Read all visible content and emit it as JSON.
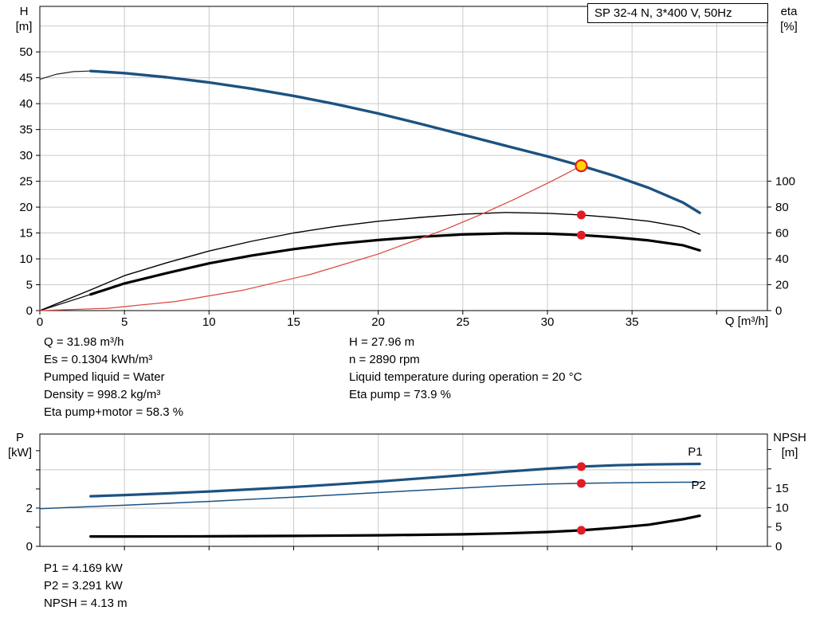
{
  "title_box": {
    "label": "SP 32-4 N, 3*400 V, 50Hz"
  },
  "axes_titles": {
    "head": [
      "H",
      "[m]"
    ],
    "eta": [
      "eta",
      "[%]"
    ],
    "flow": "Q [m³/h]",
    "power": [
      "P",
      "[kW]"
    ],
    "npsh": [
      "NPSH",
      "[m]"
    ]
  },
  "info_top": {
    "left": [
      "Q = 31.98 m³/h",
      "Es = 0.1304 kWh/m³",
      "Pumped liquid = Water",
      "Density = 998.2 kg/m³",
      "Eta pump+motor = 58.3 %"
    ],
    "right": [
      "H = 27.96 m",
      "n = 2890 rpm",
      "Liquid temperature during operation = 20 °C",
      "Eta pump = 73.9 %"
    ]
  },
  "info_bottom": [
    "P1 = 4.169 kW",
    "P2 = 3.291 kW",
    "NPSH = 4.13 m"
  ],
  "colors": {
    "grid": "#c9c9c9",
    "axis": "#000000",
    "curve_blue": "#1c5280",
    "label_blue": "#2e74b5",
    "system_red": "#d9453c",
    "dot_red": "#e31b23",
    "duty_yellow": "#ffd500",
    "curve_black": "#000000"
  },
  "chart_data": [
    {
      "type": "line",
      "title": "SP 32-4 N, 3*400 V, 50Hz",
      "area": {
        "l": 50,
        "r": 963,
        "t": 8,
        "b": 390
      },
      "x": {
        "label": "Q [m³/h]",
        "min": 0,
        "max": 43,
        "grid": [
          5,
          10,
          15,
          20,
          25,
          30,
          35,
          40
        ],
        "ticks": [
          {
            "v": 0,
            "l": "0"
          },
          {
            "v": 5,
            "l": "5"
          },
          {
            "v": 10,
            "l": "10"
          },
          {
            "v": 15,
            "l": "15"
          },
          {
            "v": 20,
            "l": "20"
          },
          {
            "v": 25,
            "l": "25"
          },
          {
            "v": 30,
            "l": "30"
          },
          {
            "v": 35,
            "l": "35"
          },
          {
            "v": 40,
            "l": ""
          }
        ]
      },
      "y_left": {
        "label": "H [m]",
        "min": 0,
        "max": 58.8,
        "grid": [
          5,
          10,
          15,
          20,
          25,
          30,
          35,
          40,
          45,
          50,
          55
        ],
        "ticks": [
          {
            "v": 0,
            "l": "0"
          },
          {
            "v": 5,
            "l": "5"
          },
          {
            "v": 10,
            "l": "10"
          },
          {
            "v": 15,
            "l": "15"
          },
          {
            "v": 20,
            "l": "20"
          },
          {
            "v": 25,
            "l": "25"
          },
          {
            "v": 30,
            "l": "30"
          },
          {
            "v": 35,
            "l": "35"
          },
          {
            "v": 40,
            "l": "40"
          },
          {
            "v": 45,
            "l": "45"
          },
          {
            "v": 50,
            "l": "50"
          }
        ]
      },
      "y_right": {
        "label": "eta [%]",
        "min": 0,
        "max": 235,
        "ticks": [
          {
            "v": 0,
            "l": "0"
          },
          {
            "v": 20,
            "l": "20"
          },
          {
            "v": 40,
            "l": "40"
          },
          {
            "v": 60,
            "l": "60"
          },
          {
            "v": 80,
            "l": "80"
          },
          {
            "v": 100,
            "l": "100"
          }
        ]
      },
      "series": [
        {
          "name": "head-curve-extension",
          "axis": "left",
          "color": "#222222",
          "width": 1.2,
          "x": [
            0,
            1,
            2,
            3
          ],
          "y": [
            44.7,
            45.7,
            46.2,
            46.3
          ]
        },
        {
          "name": "head-curve",
          "axis": "left",
          "color": "#1c5280",
          "width": 3.4,
          "x": [
            3,
            5,
            7.5,
            10,
            12.5,
            15,
            17.5,
            20,
            22.5,
            25,
            27.5,
            30,
            32,
            34,
            36,
            38,
            39
          ],
          "y": [
            46.3,
            45.9,
            45.1,
            44.1,
            42.9,
            41.5,
            39.9,
            38.1,
            36.1,
            34.0,
            31.9,
            29.8,
            28.0,
            26.0,
            23.7,
            20.9,
            18.9
          ]
        },
        {
          "name": "eta-pump-curve",
          "axis": "right",
          "color": "#000000",
          "width": 1.4,
          "x": [
            0,
            3,
            5,
            7.5,
            10,
            12.5,
            15,
            17.5,
            20,
            22.5,
            25,
            27.5,
            30,
            32,
            34,
            36,
            38,
            39
          ],
          "y": [
            0,
            16,
            27,
            37,
            46,
            53.5,
            60,
            65,
            69,
            72,
            74.5,
            75.8,
            75.2,
            73.9,
            71.8,
            69,
            64.5,
            59
          ]
        },
        {
          "name": "eta-pump-motor-extension",
          "axis": "right",
          "color": "#000000",
          "width": 1.2,
          "x": [
            0,
            3
          ],
          "y": [
            0,
            12.5
          ]
        },
        {
          "name": "eta-pump-motor-curve",
          "axis": "right",
          "color": "#000000",
          "width": 3.2,
          "x": [
            3,
            5,
            7.5,
            10,
            12.5,
            15,
            17.5,
            20,
            22.5,
            25,
            27.5,
            30,
            32,
            34,
            36,
            38,
            39
          ],
          "y": [
            12.5,
            21,
            29,
            36.5,
            42.5,
            47.5,
            51.5,
            54.5,
            57,
            58.8,
            59.7,
            59.4,
            58.3,
            56.6,
            54.2,
            50.5,
            46.5
          ]
        },
        {
          "name": "system-curve",
          "axis": "left",
          "color": "#d9453c",
          "width": 1.2,
          "x": [
            0,
            4,
            8,
            12,
            16,
            20,
            24,
            26,
            28,
            30,
            31,
            32
          ],
          "y": [
            0,
            0.44,
            1.75,
            3.94,
            7.0,
            10.94,
            15.75,
            18.48,
            21.44,
            24.61,
            26.28,
            28.0
          ]
        }
      ],
      "markers": [
        {
          "name": "duty-point-marker",
          "axis": "left",
          "x": 32,
          "y": 28,
          "r": 7,
          "fill": "#ffd500",
          "stroke": "#e31b23",
          "sw": 2.2
        },
        {
          "name": "eta-pump-duty-dot",
          "axis": "right",
          "x": 32,
          "y": 73.9,
          "r": 5.5,
          "fill": "#e31b23"
        },
        {
          "name": "eta-pump-motor-duty-dot",
          "axis": "right",
          "x": 32,
          "y": 58.3,
          "r": 5.5,
          "fill": "#e31b23"
        }
      ],
      "labels": []
    },
    {
      "type": "line",
      "title": "",
      "area": {
        "l": 50,
        "r": 963,
        "t": 8,
        "b": 149
      },
      "x": {
        "label": "",
        "min": 0,
        "max": 43,
        "grid": [
          5,
          10,
          15,
          20,
          25,
          30,
          35,
          40
        ],
        "ticks": [
          {
            "v": 5,
            "l": ""
          },
          {
            "v": 10,
            "l": ""
          },
          {
            "v": 15,
            "l": ""
          },
          {
            "v": 20,
            "l": ""
          },
          {
            "v": 25,
            "l": ""
          },
          {
            "v": 30,
            "l": ""
          },
          {
            "v": 35,
            "l": ""
          },
          {
            "v": 40,
            "l": ""
          }
        ]
      },
      "y_left": {
        "label": "P [kW]",
        "min": 0,
        "max": 5.87,
        "grid": [
          2,
          4
        ],
        "ticks": [
          {
            "v": 0,
            "l": "0"
          },
          {
            "v": 1,
            "l": ""
          },
          {
            "v": 2,
            "l": "2"
          },
          {
            "v": 3,
            "l": ""
          },
          {
            "v": 4,
            "l": ""
          },
          {
            "v": 5,
            "l": ""
          }
        ]
      },
      "y_right": {
        "label": "NPSH [m]",
        "min": 0,
        "max": 29,
        "ticks": [
          {
            "v": 0,
            "l": "0"
          },
          {
            "v": 5,
            "l": "5"
          },
          {
            "v": 10,
            "l": "10"
          },
          {
            "v": 15,
            "l": "15"
          },
          {
            "v": 20,
            "l": ""
          },
          {
            "v": 25,
            "l": ""
          }
        ]
      },
      "series": [
        {
          "name": "p1-curve",
          "axis": "left",
          "color": "#1c5280",
          "width": 3.2,
          "x": [
            3,
            5,
            7.5,
            10,
            12.5,
            15,
            17.5,
            20,
            22.5,
            25,
            27.5,
            30,
            32,
            34,
            36,
            38,
            39
          ],
          "y": [
            2.62,
            2.68,
            2.77,
            2.87,
            2.98,
            3.1,
            3.24,
            3.39,
            3.55,
            3.72,
            3.9,
            4.06,
            4.169,
            4.24,
            4.28,
            4.3,
            4.31
          ]
        },
        {
          "name": "p2-curve",
          "axis": "left",
          "color": "#1c5280",
          "width": 1.5,
          "x": [
            0,
            2.5,
            5,
            7.5,
            10,
            12.5,
            15,
            17.5,
            20,
            22.5,
            25,
            27.5,
            30,
            32,
            34,
            36,
            38,
            39
          ],
          "y": [
            1.97,
            2.06,
            2.15,
            2.25,
            2.35,
            2.46,
            2.57,
            2.69,
            2.81,
            2.93,
            3.05,
            3.17,
            3.26,
            3.291,
            3.32,
            3.34,
            3.35,
            3.35
          ]
        },
        {
          "name": "npsh-curve",
          "axis": "right",
          "color": "#000000",
          "width": 3.2,
          "x": [
            3,
            5,
            10,
            15,
            20,
            25,
            27.5,
            30,
            32,
            34,
            36,
            38,
            39
          ],
          "y": [
            2.55,
            2.55,
            2.6,
            2.7,
            2.85,
            3.1,
            3.35,
            3.7,
            4.13,
            4.8,
            5.6,
            7.0,
            7.9
          ]
        }
      ],
      "markers": [
        {
          "name": "p1-duty-dot",
          "axis": "left",
          "x": 32,
          "y": 4.169,
          "r": 5.5,
          "fill": "#e31b23"
        },
        {
          "name": "p2-duty-dot",
          "axis": "left",
          "x": 32,
          "y": 3.291,
          "r": 5.5,
          "fill": "#e31b23"
        },
        {
          "name": "npsh-duty-dot",
          "axis": "right",
          "x": 32,
          "y": 4.13,
          "r": 5.5,
          "fill": "#e31b23"
        }
      ],
      "labels": [
        {
          "text": "P1",
          "axis": "left",
          "x": 38.3,
          "y": 4.75,
          "color": "#2e74b5"
        },
        {
          "text": "P2",
          "axis": "left",
          "x": 38.5,
          "y": 3.0,
          "color": "#2e74b5"
        }
      ]
    }
  ]
}
